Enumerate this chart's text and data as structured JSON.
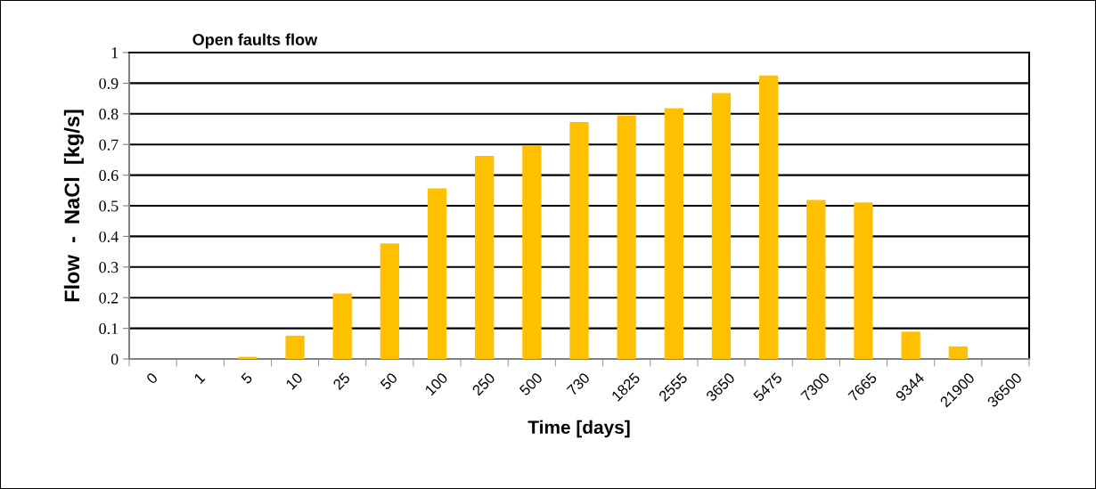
{
  "chart_data": {
    "type": "bar",
    "title": "Open faults flow",
    "xlabel": "Time [days]",
    "ylabel": "Flow  -  NaCl  [kg/s]",
    "categories": [
      "0",
      "1",
      "5",
      "10",
      "25",
      "50",
      "100",
      "250",
      "500",
      "730",
      "1825",
      "2555",
      "3650",
      "5475",
      "7300",
      "7665",
      "9344",
      "21900",
      "36500"
    ],
    "values": [
      0,
      0,
      0.007,
      0.076,
      0.214,
      0.377,
      0.557,
      0.663,
      0.696,
      0.773,
      0.794,
      0.818,
      0.868,
      0.925,
      0.519,
      0.511,
      0.089,
      0.041,
      0
    ],
    "color": "#ffc000",
    "ylim": [
      0,
      1
    ],
    "yticks": [
      0,
      0.1,
      0.2,
      0.3,
      0.4,
      0.5,
      0.6,
      0.7,
      0.8,
      0.9,
      1
    ],
    "grid": "y",
    "legend": false
  }
}
